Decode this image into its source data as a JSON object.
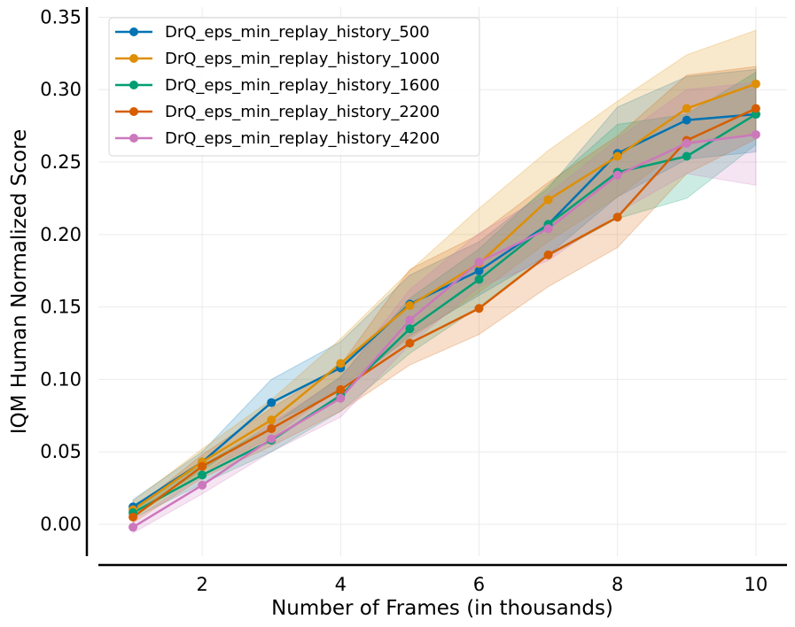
{
  "chart_data": {
    "type": "line",
    "xlabel": "Number of Frames (in thousands)",
    "ylabel": "IQM Human Normalized Score",
    "xlim": [
      0.5,
      10.45
    ],
    "ylim": [
      -0.022,
      0.357
    ],
    "xticks": [
      2,
      4,
      6,
      8,
      10
    ],
    "yticks": [
      0.0,
      0.05,
      0.1,
      0.15,
      0.2,
      0.25,
      0.3,
      0.35
    ],
    "xtick_labels": [
      "2",
      "4",
      "6",
      "8",
      "10"
    ],
    "ytick_labels": [
      "0.00",
      "0.05",
      "0.10",
      "0.15",
      "0.20",
      "0.25",
      "0.30",
      "0.35"
    ],
    "grid": true,
    "legend_position": "top-left",
    "x": [
      1,
      2,
      3,
      4,
      5,
      6,
      7,
      8,
      9,
      10
    ],
    "series": [
      {
        "name": "DrQ_eps_min_replay_history_500",
        "color": "#0173b2",
        "values": [
          0.012,
          0.043,
          0.084,
          0.108,
          0.152,
          0.175,
          0.207,
          0.256,
          0.279,
          0.283
        ],
        "lower": [
          0.008,
          0.037,
          0.07,
          0.092,
          0.13,
          0.158,
          0.186,
          0.226,
          0.252,
          0.257
        ],
        "upper": [
          0.017,
          0.05,
          0.1,
          0.126,
          0.172,
          0.195,
          0.232,
          0.288,
          0.309,
          0.314
        ]
      },
      {
        "name": "DrQ_eps_min_replay_history_1000",
        "color": "#de8f05",
        "values": [
          0.01,
          0.043,
          0.072,
          0.111,
          0.151,
          0.18,
          0.224,
          0.254,
          0.287,
          0.304
        ],
        "lower": [
          0.005,
          0.036,
          0.06,
          0.095,
          0.128,
          0.16,
          0.195,
          0.226,
          0.262,
          0.27
        ],
        "upper": [
          0.016,
          0.052,
          0.086,
          0.128,
          0.175,
          0.218,
          0.258,
          0.292,
          0.324,
          0.341
        ]
      },
      {
        "name": "DrQ_eps_min_replay_history_1600",
        "color": "#029e73",
        "values": [
          0.008,
          0.034,
          0.058,
          0.089,
          0.135,
          0.169,
          0.207,
          0.243,
          0.254,
          0.283
        ],
        "lower": [
          0.004,
          0.028,
          0.05,
          0.078,
          0.118,
          0.15,
          0.185,
          0.211,
          0.225,
          0.262
        ],
        "upper": [
          0.013,
          0.041,
          0.068,
          0.102,
          0.156,
          0.19,
          0.234,
          0.276,
          0.283,
          0.312
        ]
      },
      {
        "name": "DrQ_eps_min_replay_history_2200",
        "color": "#d55e00",
        "values": [
          0.005,
          0.04,
          0.066,
          0.093,
          0.125,
          0.149,
          0.186,
          0.212,
          0.265,
          0.287
        ],
        "lower": [
          0.001,
          0.032,
          0.054,
          0.078,
          0.11,
          0.131,
          0.164,
          0.191,
          0.242,
          0.266
        ],
        "upper": [
          0.01,
          0.048,
          0.08,
          0.11,
          0.176,
          0.2,
          0.236,
          0.268,
          0.31,
          0.316
        ]
      },
      {
        "name": "DrQ_eps_min_replay_history_4200",
        "color": "#cc78bc",
        "values": [
          -0.002,
          0.027,
          0.059,
          0.087,
          0.141,
          0.181,
          0.204,
          0.241,
          0.263,
          0.269
        ],
        "lower": [
          -0.006,
          0.021,
          0.05,
          0.074,
          0.124,
          0.164,
          0.182,
          0.215,
          0.242,
          0.234
        ],
        "upper": [
          0.003,
          0.034,
          0.07,
          0.101,
          0.162,
          0.201,
          0.228,
          0.266,
          0.3,
          0.305
        ]
      }
    ]
  }
}
